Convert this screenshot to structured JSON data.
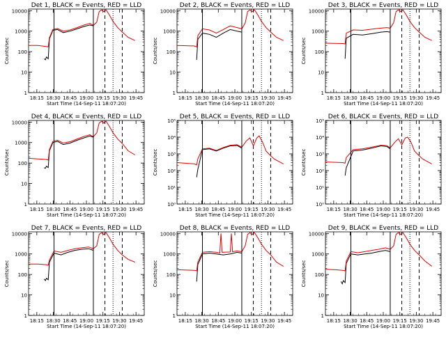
{
  "figure": {
    "x_title": "Start Time (14-Sep-11 18:07:20)",
    "y_title": "Counts/sec",
    "x_tick_labels": [
      "18:15",
      "18:30",
      "18:45",
      "19:00",
      "19:15",
      "19:30",
      "19:45"
    ],
    "colors": {
      "events": "#000000",
      "lld": "#e00000",
      "axis": "#000000"
    }
  },
  "chart_data": [
    {
      "type": "line",
      "title": "Det 1, BLACK = Events, RED = LLD",
      "xlabel": "Start Time (14-Sep-11 18:07:20)",
      "ylabel": "Counts/sec",
      "xlim": [
        0,
        100
      ],
      "log_y": true,
      "ylim": [
        1,
        12000
      ],
      "y_tick_labels": [
        "1",
        "10",
        "100",
        "1000",
        "10000"
      ],
      "markers": {
        "solid": [
          22,
          56
        ],
        "dashed": [
          66,
          81
        ],
        "dotted": [
          73
        ]
      },
      "series": [
        {
          "name": "Events",
          "color": "#000000",
          "x": [
            13.5,
            14.5,
            15.5,
            17,
            18,
            21,
            25,
            30,
            36,
            42,
            48,
            53,
            56
          ],
          "y": [
            45,
            40,
            55,
            45,
            420,
            1100,
            1200,
            850,
            1000,
            1300,
            1700,
            2000,
            1800
          ]
        },
        {
          "name": "LLD",
          "color": "#e00000",
          "x": [
            0,
            8,
            15,
            17,
            18,
            21,
            25,
            30,
            36,
            42,
            48,
            53,
            56,
            59,
            61,
            63,
            65,
            67,
            70,
            73,
            77,
            81,
            86,
            92
          ],
          "y": [
            200,
            200,
            180,
            170,
            480,
            1200,
            1350,
            1000,
            1150,
            1500,
            2000,
            2400,
            1900,
            2800,
            9000,
            11000,
            9000,
            11000,
            6000,
            3000,
            1500,
            900,
            500,
            350
          ]
        }
      ]
    },
    {
      "type": "line",
      "title": "Det 2, BLACK = Events, RED = LLD",
      "xlabel": "Start Time (14-Sep-11 18:07:20)",
      "ylabel": "Counts/sec",
      "xlim": [
        0,
        100
      ],
      "log_y": true,
      "ylim": [
        1,
        12000
      ],
      "y_tick_labels": [
        "1",
        "10",
        "100",
        "1000",
        "10000"
      ],
      "markers": {
        "solid": [
          22,
          56
        ],
        "dashed": [
          66,
          81
        ],
        "dotted": [
          73
        ]
      },
      "series": [
        {
          "name": "Events",
          "color": "#000000",
          "x": [
            17,
            18,
            22,
            28,
            34,
            40,
            46,
            52,
            56
          ],
          "y": [
            40,
            400,
            800,
            700,
            500,
            800,
            1200,
            1000,
            900
          ]
        },
        {
          "name": "LLD",
          "color": "#e00000",
          "x": [
            0,
            15,
            17,
            18,
            22,
            28,
            34,
            40,
            46,
            52,
            56,
            59,
            61,
            63,
            65,
            67,
            70,
            73,
            77,
            81,
            86,
            92
          ],
          "y": [
            200,
            190,
            170,
            600,
            1300,
            1150,
            800,
            1200,
            1800,
            1500,
            1300,
            2500,
            9000,
            11000,
            9000,
            11000,
            6000,
            3000,
            1500,
            900,
            500,
            350
          ]
        }
      ]
    },
    {
      "type": "line",
      "title": "Det 3, BLACK = Events, RED = LLD",
      "xlabel": "Start Time (14-Sep-11 18:07:20)",
      "ylabel": "Counts/sec",
      "xlim": [
        0,
        100
      ],
      "log_y": true,
      "ylim": [
        1,
        12000
      ],
      "y_tick_labels": [
        "1",
        "10",
        "100",
        "1000",
        "10000"
      ],
      "markers": {
        "solid": [
          22,
          56
        ],
        "dashed": [
          66,
          81
        ],
        "dotted": [
          73
        ]
      },
      "series": [
        {
          "name": "Events",
          "color": "#000000",
          "x": [
            17,
            18,
            24,
            32,
            40,
            48,
            53,
            56
          ],
          "y": [
            45,
            450,
            700,
            650,
            750,
            900,
            950,
            900
          ]
        },
        {
          "name": "LLD",
          "color": "#e00000",
          "x": [
            0,
            15,
            17,
            18,
            24,
            32,
            40,
            48,
            53,
            56,
            59,
            61,
            63,
            65,
            67,
            70,
            73,
            77,
            81,
            86,
            92
          ],
          "y": [
            260,
            250,
            240,
            800,
            1150,
            1100,
            1250,
            1400,
            1500,
            1400,
            2600,
            9000,
            11000,
            9000,
            11000,
            6000,
            3000,
            1500,
            900,
            500,
            350
          ]
        }
      ]
    },
    {
      "type": "line",
      "title": "Det 4, BLACK = Events, RED = LLD",
      "xlabel": "Start Time (14-Sep-11 18:07:20)",
      "ylabel": "Counts/sec",
      "xlim": [
        0,
        100
      ],
      "log_y": true,
      "ylim": [
        1,
        12000
      ],
      "y_tick_labels": [
        "1",
        "10",
        "100",
        "1000",
        "10000"
      ],
      "markers": {
        "solid": [
          22,
          56
        ],
        "dashed": [
          66,
          81
        ],
        "dotted": [
          73
        ]
      },
      "series": [
        {
          "name": "Events",
          "color": "#000000",
          "x": [
            13.5,
            14.5,
            15.5,
            17,
            18,
            21,
            25,
            30,
            36,
            42,
            48,
            53,
            56
          ],
          "y": [
            60,
            55,
            70,
            60,
            400,
            1000,
            1150,
            800,
            950,
            1300,
            1700,
            2100,
            1800
          ]
        },
        {
          "name": "LLD",
          "color": "#e00000",
          "x": [
            0,
            8,
            15,
            17,
            18,
            21,
            25,
            30,
            36,
            42,
            48,
            53,
            56,
            59,
            61,
            63,
            65,
            67,
            70,
            73,
            77,
            81,
            86,
            92
          ],
          "y": [
            170,
            160,
            150,
            140,
            450,
            1150,
            1300,
            950,
            1100,
            1500,
            2000,
            2400,
            1900,
            3000,
            9000,
            11000,
            9000,
            11000,
            6000,
            3000,
            1500,
            900,
            400,
            250
          ]
        }
      ]
    },
    {
      "type": "line",
      "title": "Det 5, BLACK = Events, RED = LLD",
      "xlabel": "Start Time (14-Sep-11 18:07:20)",
      "ylabel": "Counts/sec",
      "xlim": [
        0,
        100
      ],
      "log_y": true,
      "ylim": [
        1,
        100000
      ],
      "y_tick_labels": [
        "10⁰",
        "10¹",
        "10²",
        "10³",
        "10⁴",
        "10⁵"
      ],
      "markers": {
        "solid": [
          22,
          56
        ],
        "dashed": [
          66,
          81
        ],
        "dotted": [
          73
        ]
      },
      "series": [
        {
          "name": "Events",
          "color": "#000000",
          "x": [
            17,
            18,
            22,
            28,
            34,
            40,
            46,
            52,
            56
          ],
          "y": [
            40,
            120,
            1800,
            2000,
            1500,
            2200,
            3000,
            3200,
            2200
          ]
        },
        {
          "name": "LLD",
          "color": "#e00000",
          "x": [
            0,
            15,
            17,
            18,
            22,
            28,
            34,
            40,
            46,
            52,
            56,
            60,
            63,
            66,
            69,
            71,
            74,
            77,
            80,
            84,
            88,
            92
          ],
          "y": [
            300,
            250,
            220,
            500,
            2000,
            2200,
            1600,
            2400,
            3300,
            3500,
            2500,
            6000,
            9000,
            3000,
            9000,
            12000,
            5000,
            1500,
            900,
            500,
            350,
            250
          ]
        }
      ]
    },
    {
      "type": "line",
      "title": "Det 6, BLACK = Events, RED = LLD",
      "xlabel": "Start Time (14-Sep-11 18:07:20)",
      "ylabel": "Counts/sec",
      "xlim": [
        0,
        100
      ],
      "log_y": true,
      "ylim": [
        1,
        100000
      ],
      "y_tick_labels": [
        "10⁰",
        "10¹",
        "10²",
        "10³",
        "10⁴",
        "10⁵"
      ],
      "markers": {
        "solid": [
          22,
          56
        ],
        "dashed": [
          66,
          81
        ],
        "dotted": [
          73
        ]
      },
      "series": [
        {
          "name": "Events",
          "color": "#000000",
          "x": [
            17,
            18,
            24,
            32,
            40,
            48,
            53,
            56
          ],
          "y": [
            50,
            150,
            1500,
            1700,
            2200,
            3000,
            2800,
            2000
          ]
        },
        {
          "name": "LLD",
          "color": "#e00000",
          "x": [
            0,
            15,
            17,
            18,
            24,
            32,
            40,
            48,
            53,
            56,
            60,
            63,
            66,
            69,
            71,
            74,
            77,
            80,
            84,
            88,
            92
          ],
          "y": [
            330,
            300,
            280,
            600,
            1800,
            2000,
            2500,
            3300,
            3100,
            2300,
            5000,
            8000,
            3500,
            9000,
            10000,
            5000,
            1500,
            900,
            500,
            350,
            250
          ]
        }
      ]
    },
    {
      "type": "line",
      "title": "Det 7, BLACK = Events, RED = LLD",
      "xlabel": "Start Time (14-Sep-11 18:07:20)",
      "ylabel": "Counts/sec",
      "xlim": [
        0,
        100
      ],
      "log_y": true,
      "ylim": [
        1,
        12000
      ],
      "y_tick_labels": [
        "1",
        "10",
        "100",
        "1000",
        "10000"
      ],
      "markers": {
        "solid": [
          22,
          56
        ],
        "dashed": [
          66,
          81
        ],
        "dotted": [
          73
        ]
      },
      "series": [
        {
          "name": "Events",
          "color": "#000000",
          "x": [
            13.5,
            14.5,
            15.5,
            17,
            18,
            22,
            28,
            34,
            40,
            46,
            52,
            56
          ],
          "y": [
            60,
            50,
            65,
            55,
            400,
            1100,
            900,
            1200,
            1500,
            1700,
            1800,
            1500
          ]
        },
        {
          "name": "LLD",
          "color": "#e00000",
          "x": [
            0,
            8,
            15,
            17,
            18,
            22,
            28,
            34,
            40,
            46,
            52,
            56,
            59,
            61,
            63,
            65,
            67,
            70,
            73,
            77,
            81,
            86,
            92
          ],
          "y": [
            320,
            320,
            300,
            280,
            500,
            1400,
            1200,
            1500,
            1800,
            2000,
            2200,
            1800,
            2500,
            9000,
            11000,
            9000,
            11000,
            6000,
            3000,
            1500,
            900,
            550,
            400
          ]
        }
      ]
    },
    {
      "type": "line",
      "title": "Det 8, BLACK = Events, RED = LLD",
      "xlabel": "Start Time (14-Sep-11 18:07:20)",
      "ylabel": "Counts/sec",
      "xlim": [
        0,
        100
      ],
      "log_y": true,
      "ylim": [
        1,
        12000
      ],
      "y_tick_labels": [
        "1",
        "10",
        "100",
        "1000",
        "10000"
      ],
      "markers": {
        "solid": [
          22,
          56
        ],
        "dashed": [
          66,
          81
        ],
        "dotted": [
          73
        ]
      },
      "series": [
        {
          "name": "Events",
          "color": "#000000",
          "x": [
            17,
            18,
            22,
            28,
            34,
            40,
            46,
            52,
            56
          ],
          "y": [
            45,
            300,
            1000,
            1100,
            1000,
            900,
            1000,
            1200,
            1100
          ]
        },
        {
          "name": "LLD",
          "color": "#e00000",
          "x": [
            0,
            15,
            17,
            18,
            22,
            28,
            34,
            37,
            38,
            39,
            46,
            47,
            48,
            52,
            56,
            59,
            61,
            63,
            65,
            67,
            70,
            73,
            77,
            81,
            86,
            92
          ],
          "y": [
            170,
            160,
            150,
            400,
            1200,
            1300,
            1200,
            1100,
            10000,
            1200,
            1250,
            10000,
            1300,
            1400,
            1300,
            2500,
            9000,
            11000,
            9000,
            11000,
            6000,
            3000,
            1500,
            900,
            400,
            250
          ]
        }
      ]
    },
    {
      "type": "line",
      "title": "Det 9, BLACK = Events, RED = LLD",
      "xlabel": "Start Time (14-Sep-11 18:07:20)",
      "ylabel": "Counts/sec",
      "xlim": [
        0,
        100
      ],
      "log_y": true,
      "ylim": [
        1,
        12000
      ],
      "y_tick_labels": [
        "1",
        "10",
        "100",
        "1000",
        "10000"
      ],
      "markers": {
        "solid": [
          22,
          56
        ],
        "dashed": [
          66,
          81
        ],
        "dotted": [
          73
        ]
      },
      "series": [
        {
          "name": "Events",
          "color": "#000000",
          "x": [
            13.5,
            14.5,
            15.5,
            17,
            18,
            22,
            28,
            34,
            40,
            46,
            52,
            56
          ],
          "y": [
            45,
            35,
            50,
            40,
            350,
            1000,
            900,
            1000,
            1100,
            1300,
            1500,
            1300
          ]
        },
        {
          "name": "LLD",
          "color": "#e00000",
          "x": [
            0,
            8,
            15,
            17,
            18,
            22,
            28,
            34,
            40,
            46,
            52,
            56,
            59,
            61,
            63,
            65,
            67,
            70,
            73,
            77,
            81,
            86,
            92
          ],
          "y": [
            180,
            170,
            160,
            150,
            450,
            1300,
            1150,
            1300,
            1500,
            1700,
            2000,
            1700,
            2500,
            9000,
            11000,
            9000,
            11000,
            6000,
            3000,
            1500,
            900,
            450,
            250
          ]
        }
      ]
    }
  ]
}
